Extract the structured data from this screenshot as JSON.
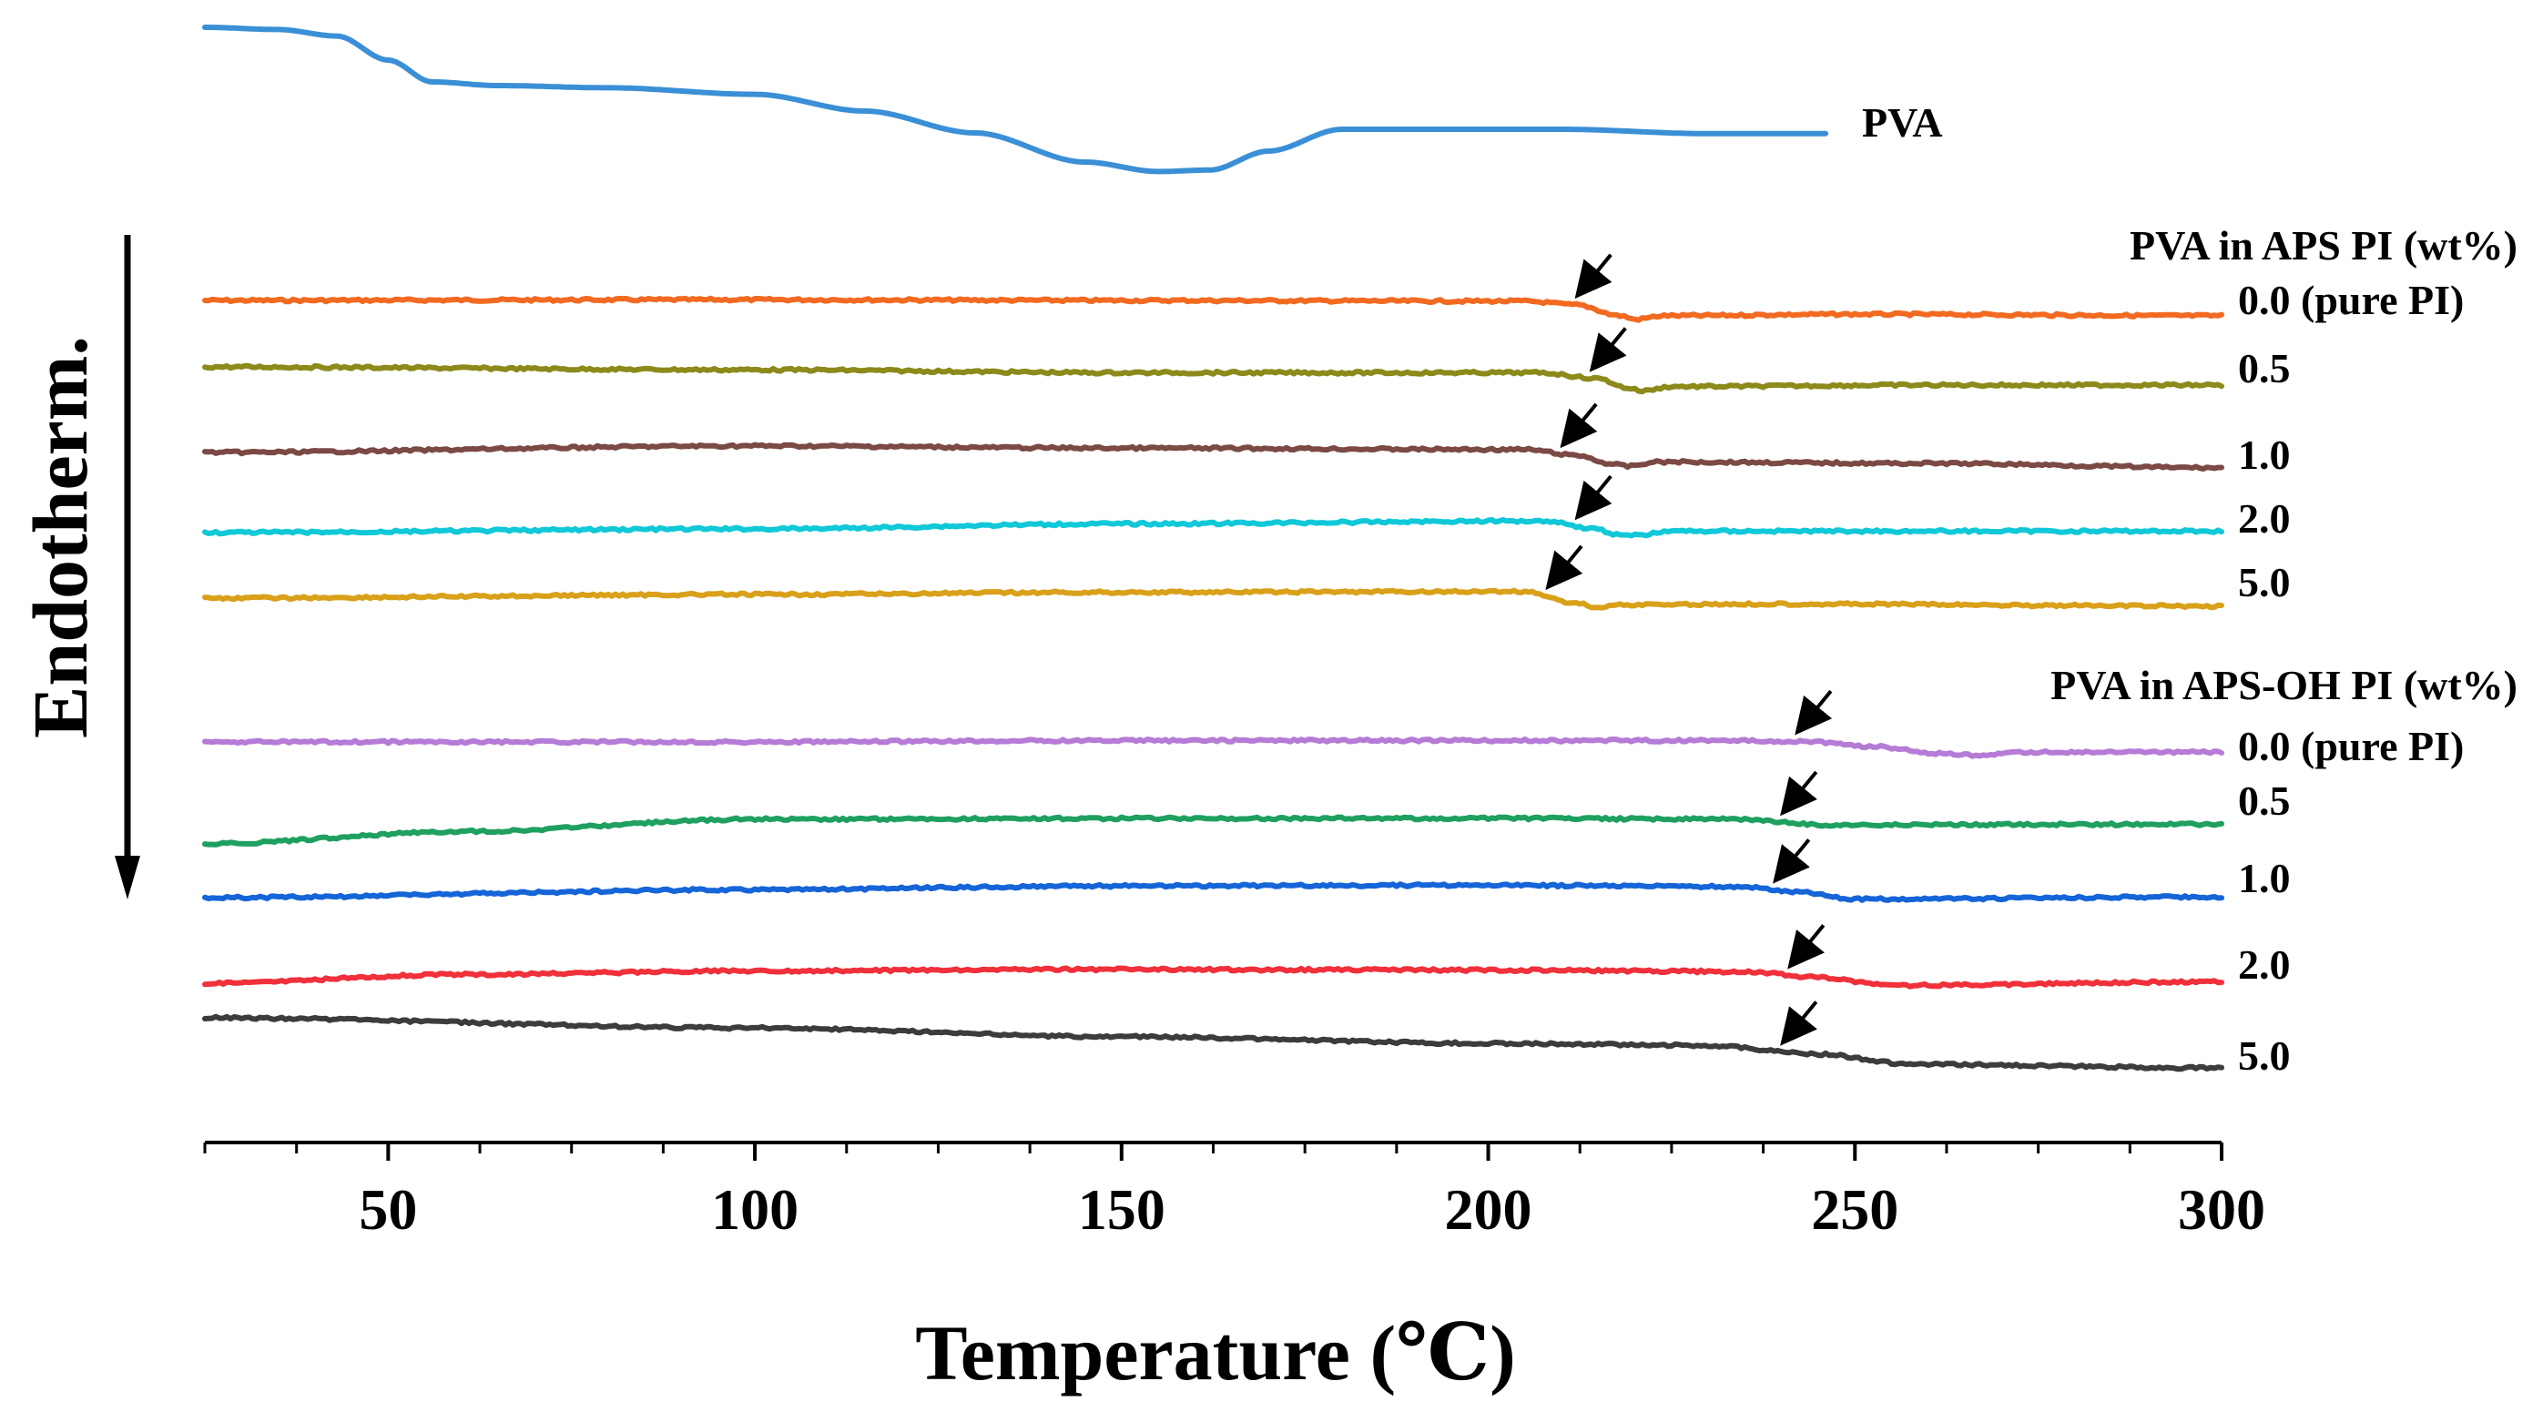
{
  "chart_data": {
    "type": "line",
    "title": "",
    "xlabel": "Temperature (℃)",
    "ylabel": "Endotherm.",
    "xlim": [
      25,
      300
    ],
    "xticks": [
      50,
      100,
      150,
      200,
      250,
      300
    ],
    "yticks_shown": false,
    "groups": [
      {
        "title": "PVA in APS PI (wt%)"
      },
      {
        "title": "PVA in APS-OH PI (wt%)"
      }
    ],
    "series": [
      {
        "name": "PVA",
        "color": "#3a8fd6",
        "points": [
          [
            25,
            0
          ],
          [
            35,
            0.3
          ],
          [
            43,
            1.2
          ],
          [
            50,
            4.5
          ],
          [
            56,
            7.5
          ],
          [
            65,
            8.0
          ],
          [
            80,
            8.3
          ],
          [
            100,
            9.2
          ],
          [
            115,
            11.5
          ],
          [
            130,
            14.5
          ],
          [
            145,
            18.5
          ],
          [
            155,
            19.8
          ],
          [
            162,
            19.6
          ],
          [
            170,
            17.0
          ],
          [
            180,
            14.0
          ],
          [
            210,
            14.0
          ],
          [
            230,
            14.6
          ],
          [
            246,
            14.6
          ]
        ]
      },
      {
        "name": "0.0 (pure PI)",
        "group": 0,
        "color": "#f26a21",
        "transition_T": 212,
        "points": [
          [
            25,
            0
          ],
          [
            100,
            -0.1
          ],
          [
            150,
            0
          ],
          [
            205,
            0.1
          ],
          [
            212,
            0.6
          ],
          [
            218,
            2.1
          ],
          [
            220,
            2.6
          ],
          [
            224,
            2.1
          ],
          [
            250,
            1.9
          ],
          [
            300,
            2.1
          ]
        ]
      },
      {
        "name": "0.5",
        "group": 0,
        "color": "#8c8a1a",
        "transition_T": 214,
        "points": [
          [
            25,
            0
          ],
          [
            100,
            0.4
          ],
          [
            150,
            0.8
          ],
          [
            207,
            0.8
          ],
          [
            215,
            1.6
          ],
          [
            219,
            2.9
          ],
          [
            221,
            3.3
          ],
          [
            225,
            2.7
          ],
          [
            260,
            2.5
          ],
          [
            300,
            2.5
          ]
        ]
      },
      {
        "name": "1.0",
        "group": 0,
        "color": "#7b4a44",
        "transition_T": 210,
        "points": [
          [
            25,
            0
          ],
          [
            100,
            -0.9
          ],
          [
            150,
            -0.6
          ],
          [
            205,
            -0.4
          ],
          [
            212,
            0.4
          ],
          [
            217,
            1.6
          ],
          [
            219,
            1.9
          ],
          [
            223,
            1.3
          ],
          [
            260,
            1.5
          ],
          [
            300,
            2.1
          ]
        ]
      },
      {
        "name": "2.0",
        "group": 0,
        "color": "#11c8d8",
        "transition_T": 212,
        "points": [
          [
            25,
            0
          ],
          [
            100,
            -0.5
          ],
          [
            150,
            -1.2
          ],
          [
            208,
            -1.6
          ],
          [
            214,
            -0.6
          ],
          [
            218,
            0.3
          ],
          [
            220,
            0.4
          ],
          [
            225,
            -0.2
          ],
          [
            260,
            -0.2
          ],
          [
            300,
            -0.2
          ]
        ]
      },
      {
        "name": "5.0",
        "group": 0,
        "color": "#d9a01a",
        "transition_T": 208,
        "points": [
          [
            25,
            0
          ],
          [
            100,
            -0.5
          ],
          [
            150,
            -0.8
          ],
          [
            205,
            -0.9
          ],
          [
            212,
            0.7
          ],
          [
            215,
            1.3
          ],
          [
            218,
            0.9
          ],
          [
            240,
            0.8
          ],
          [
            300,
            1.1
          ]
        ]
      },
      {
        "name": "0.0 (pure PI)",
        "group": 1,
        "color": "#b57bd6",
        "transition_T": 242,
        "points": [
          [
            25,
            0
          ],
          [
            100,
            0
          ],
          [
            150,
            -0.2
          ],
          [
            230,
            -0.2
          ],
          [
            243,
            -0.1
          ],
          [
            252,
            0.6
          ],
          [
            262,
            1.6
          ],
          [
            266,
            1.8
          ],
          [
            275,
            1.4
          ],
          [
            300,
            1.4
          ]
        ]
      },
      {
        "name": "0.5",
        "group": 1,
        "color": "#1fa060",
        "transition_T": 240,
        "points": [
          [
            25,
            0
          ],
          [
            60,
            -1.7
          ],
          [
            100,
            -3.4
          ],
          [
            150,
            -3.5
          ],
          [
            200,
            -3.5
          ],
          [
            235,
            -3.4
          ],
          [
            240,
            -3.0
          ],
          [
            245,
            -2.6
          ],
          [
            300,
            -2.7
          ]
        ]
      },
      {
        "name": "1.0",
        "group": 1,
        "color": "#1565d8",
        "transition_T": 239,
        "points": [
          [
            25,
            0
          ],
          [
            100,
            -1.1
          ],
          [
            150,
            -1.6
          ],
          [
            200,
            -1.7
          ],
          [
            235,
            -1.5
          ],
          [
            242,
            -0.8
          ],
          [
            250,
            0.2
          ],
          [
            300,
            -0.1
          ]
        ]
      },
      {
        "name": "2.0",
        "group": 1,
        "color": "#f0303a",
        "transition_T": 241,
        "points": [
          [
            25,
            0
          ],
          [
            60,
            -1.2
          ],
          [
            100,
            -1.7
          ],
          [
            150,
            -1.9
          ],
          [
            200,
            -1.8
          ],
          [
            235,
            -1.6
          ],
          [
            245,
            -0.8
          ],
          [
            255,
            0.3
          ],
          [
            300,
            -0.2
          ]
        ]
      },
      {
        "name": "5.0",
        "group": 1,
        "color": "#3c3c3c",
        "transition_T": 240,
        "points": [
          [
            25,
            0
          ],
          [
            100,
            1.4
          ],
          [
            150,
            2.6
          ],
          [
            200,
            3.5
          ],
          [
            230,
            3.8
          ],
          [
            245,
            5.0
          ],
          [
            258,
            6.4
          ],
          [
            300,
            6.9
          ]
        ]
      }
    ]
  }
}
